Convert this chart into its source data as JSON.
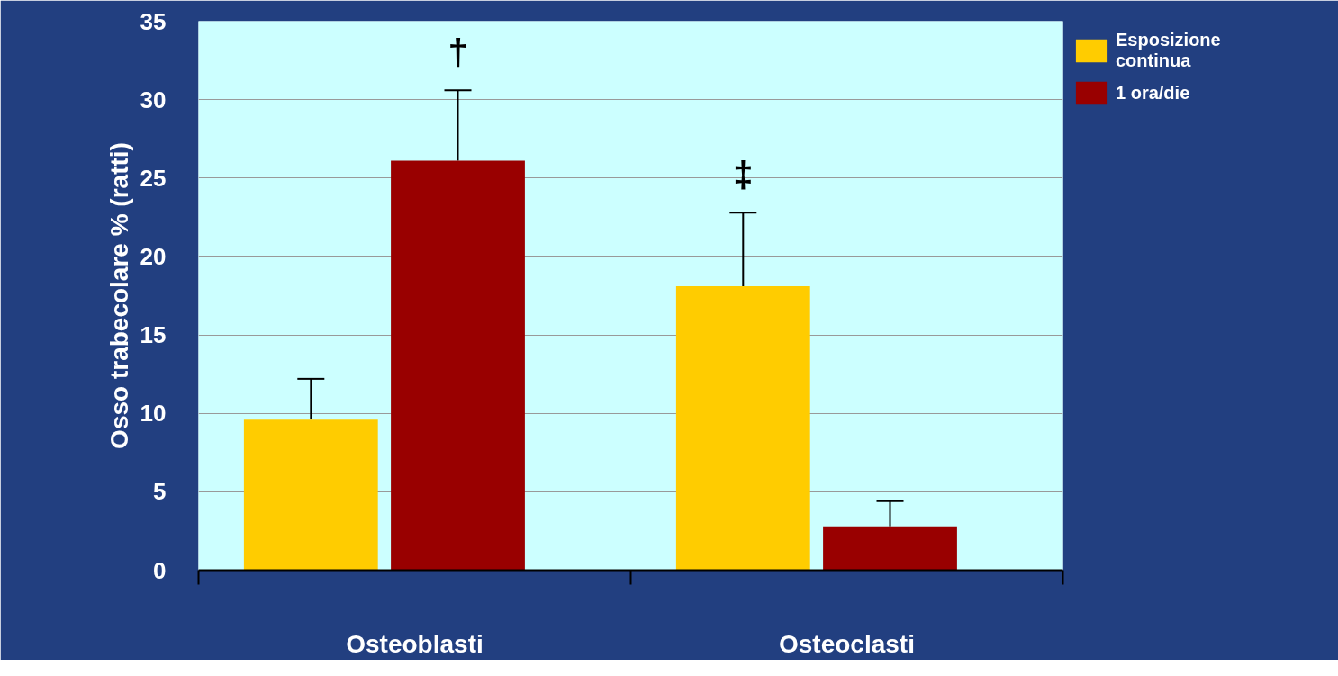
{
  "chart_data": {
    "type": "bar",
    "ylabel": "Osso trabecolare % (ratti)",
    "categories": [
      "Osteoblasti",
      "Osteoclasti"
    ],
    "series": [
      {
        "name": "Esposizione continua",
        "color": "#ffcc00",
        "values": [
          9.6,
          18.1
        ],
        "errors": [
          [
            9.6,
            12.2
          ],
          [
            18.1,
            22.8
          ]
        ]
      },
      {
        "name": "1 ora/die",
        "color": "#990000",
        "values": [
          26.1,
          2.8
        ],
        "errors": [
          [
            26.1,
            30.6
          ],
          [
            2.8,
            4.4
          ]
        ]
      }
    ],
    "ylim": [
      0,
      35
    ],
    "yticks": [
      0,
      5,
      10,
      15,
      20,
      25,
      30,
      35
    ],
    "grid": "y",
    "legend": "top right",
    "annotations": [
      "†",
      "‡"
    ]
  }
}
